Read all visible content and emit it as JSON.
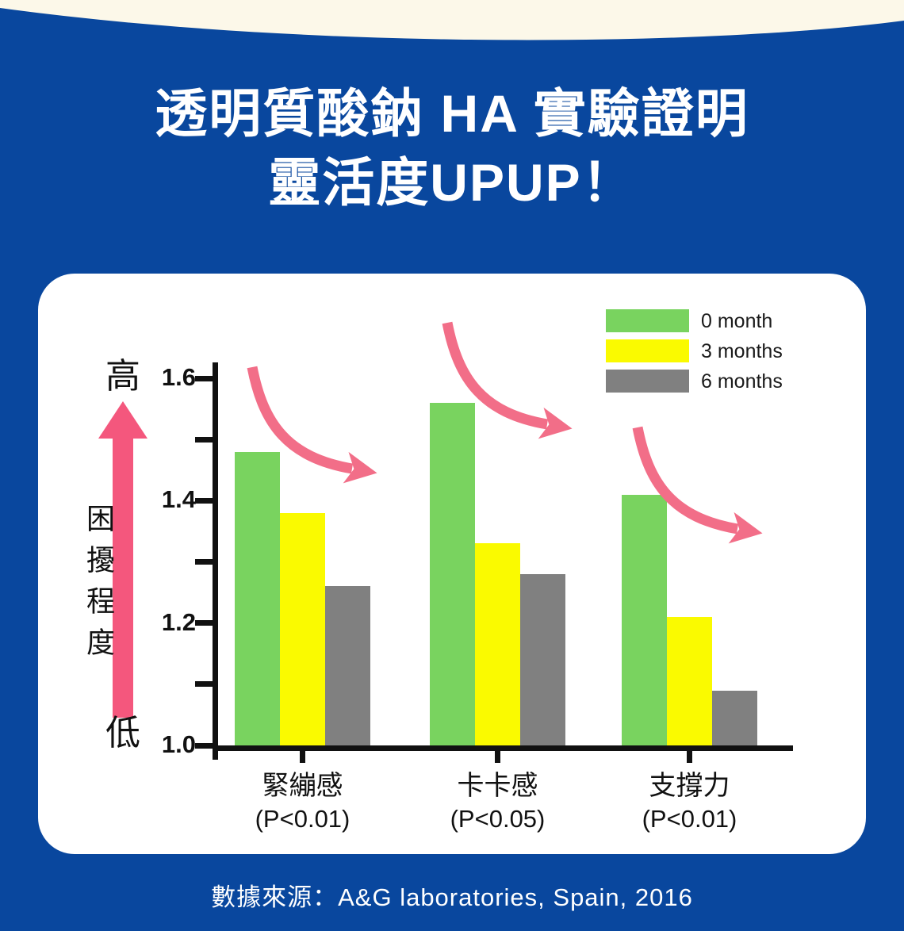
{
  "page": {
    "title_line1": "透明質酸鈉 HA 實驗證明",
    "title_line2": "靈活度UPUP！",
    "source": "數據來源：A&G laboratories, Spain, 2016"
  },
  "colors": {
    "background_blue": "#09479E",
    "cream_top": "#FCF8E9",
    "card_white": "#FFFFFF",
    "bar_green": "#79D35F",
    "bar_yellow": "#FAFA00",
    "bar_gray": "#808080",
    "up_arrow_pink": "#F4577D",
    "trend_arrow_pink": "#F26E88",
    "axis_black": "#111111"
  },
  "chart_data": {
    "type": "bar",
    "title": "",
    "categories": [
      "緊繃感",
      "卡卡感",
      "支撐力"
    ],
    "category_sublabels": [
      "(P<0.01)",
      "(P<0.05)",
      "(P<0.01)"
    ],
    "series": [
      {
        "name": "0 month",
        "color": "#79D35F",
        "values": [
          1.48,
          1.56,
          1.41
        ]
      },
      {
        "name": "3 months",
        "color": "#FAFA00",
        "values": [
          1.38,
          1.33,
          1.21
        ]
      },
      {
        "name": "6 months",
        "color": "#808080",
        "values": [
          1.26,
          1.28,
          1.09
        ]
      }
    ],
    "ylim": [
      1.0,
      1.6
    ],
    "ytick_step": 0.1,
    "ytick_labeled": [
      "1.0",
      "1.2",
      "1.4",
      "1.6"
    ],
    "ylabel": "困擾程度",
    "y_high_label": "高",
    "y_low_label": "低",
    "legend_position": "top-right",
    "grid": false,
    "annotations": "three pink curved arrows showing decreasing trend over each category group"
  }
}
